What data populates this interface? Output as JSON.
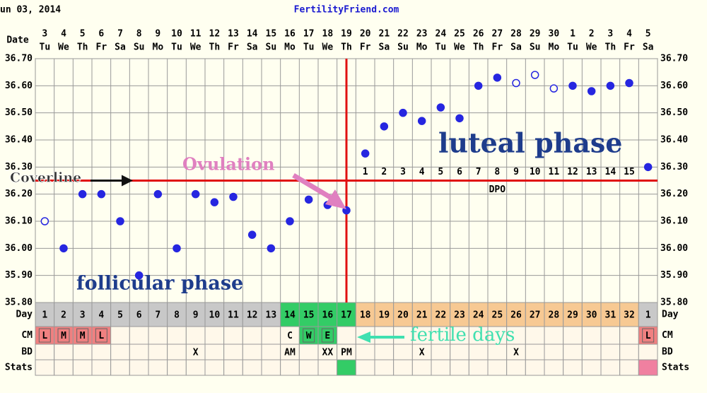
{
  "chart_data": {
    "type": "line",
    "header_date": "un 03, 2014",
    "site": "FertilityFriend.com",
    "date_label": "Date",
    "dates": [
      "3",
      "4",
      "5",
      "6",
      "7",
      "8",
      "9",
      "10",
      "11",
      "12",
      "13",
      "14",
      "15",
      "16",
      "17",
      "18",
      "19",
      "20",
      "21",
      "22",
      "23",
      "24",
      "25",
      "26",
      "27",
      "28",
      "29",
      "30",
      "1",
      "2",
      "3",
      "4",
      "5"
    ],
    "weekdays": [
      "Tu",
      "We",
      "Th",
      "Fr",
      "Sa",
      "Su",
      "Mo",
      "Tu",
      "We",
      "Th",
      "Fr",
      "Sa",
      "Su",
      "Mo",
      "Tu",
      "We",
      "Th",
      "Fr",
      "Sa",
      "Su",
      "Mo",
      "Tu",
      "We",
      "Th",
      "Fr",
      "Sa",
      "Su",
      "Mo",
      "Tu",
      "We",
      "Th",
      "Fr",
      "Sa"
    ],
    "values": [
      36.1,
      36.0,
      36.2,
      36.2,
      36.1,
      35.9,
      36.2,
      36.0,
      36.2,
      36.17,
      36.19,
      36.05,
      36.0,
      36.1,
      36.18,
      36.16,
      36.14,
      36.35,
      36.45,
      36.5,
      36.47,
      36.52,
      36.48,
      36.6,
      36.63,
      36.61,
      36.64,
      36.59,
      36.6,
      36.58,
      36.6,
      36.61,
      36.3
    ],
    "open_markers": [
      true,
      false,
      false,
      false,
      false,
      false,
      false,
      false,
      false,
      false,
      false,
      false,
      false,
      false,
      false,
      false,
      false,
      false,
      false,
      false,
      false,
      false,
      false,
      false,
      false,
      true,
      true,
      true,
      false,
      false,
      false,
      false,
      false
    ],
    "color": "#2626e0",
    "ylim": [
      35.8,
      36.7
    ],
    "yticks": [
      {
        "value": 35.8,
        "label": "35.80"
      },
      {
        "value": 35.9,
        "label": "35.90"
      },
      {
        "value": 36.0,
        "label": "36.00"
      },
      {
        "value": 36.1,
        "label": "36.10"
      },
      {
        "value": 36.2,
        "label": "36.20"
      },
      {
        "value": 36.3,
        "label": "36.30"
      },
      {
        "value": 36.4,
        "label": "36.40"
      },
      {
        "value": 36.5,
        "label": "36.50"
      },
      {
        "value": 36.6,
        "label": "36.60"
      },
      {
        "value": 36.7,
        "label": "36.70"
      }
    ],
    "grid": true,
    "coverline": {
      "value": 36.25,
      "label": "Coverline"
    },
    "ovulation": {
      "label": "Ovulation",
      "day": 17
    },
    "dpo": {
      "label": "DPO",
      "numbers": [
        1,
        2,
        3,
        4,
        5,
        6,
        7,
        8,
        9,
        10,
        11,
        12,
        13,
        14,
        15
      ]
    },
    "annotations": {
      "luteal": "luteal phase",
      "follicular": "follicular phase",
      "fertile": "fertile days"
    },
    "rows": {
      "day": {
        "label": "Day",
        "values": [
          1,
          2,
          3,
          4,
          5,
          6,
          7,
          8,
          9,
          10,
          11,
          12,
          13,
          14,
          15,
          16,
          17,
          18,
          19,
          20,
          21,
          22,
          23,
          24,
          25,
          26,
          27,
          28,
          29,
          30,
          31,
          32,
          1
        ],
        "colors": [
          "#c8c8c8",
          "#c8c8c8",
          "#c8c8c8",
          "#c8c8c8",
          "#c8c8c8",
          "#c8c8c8",
          "#c8c8c8",
          "#c8c8c8",
          "#c8c8c8",
          "#c8c8c8",
          "#c8c8c8",
          "#c8c8c8",
          "#c8c8c8",
          "#33cc66",
          "#33cc66",
          "#33cc66",
          "#33cc66",
          "#f7c993",
          "#f7c993",
          "#f7c993",
          "#f7c993",
          "#f7c993",
          "#f7c993",
          "#f7c993",
          "#f7c993",
          "#f7c993",
          "#f7c993",
          "#f7c993",
          "#f7c993",
          "#f7c993",
          "#f7c993",
          "#f7c993",
          "#c8c8c8"
        ]
      },
      "cm": {
        "label": "CM",
        "values": [
          "L",
          "M",
          "M",
          "L",
          null,
          null,
          null,
          null,
          null,
          null,
          null,
          null,
          null,
          "C",
          "W",
          "E",
          null,
          null,
          null,
          null,
          null,
          null,
          null,
          null,
          null,
          null,
          null,
          null,
          null,
          null,
          null,
          null,
          "L"
        ],
        "colors": [
          "#f08080",
          "#f08080",
          "#f08080",
          "#f08080",
          null,
          null,
          null,
          null,
          null,
          null,
          null,
          null,
          null,
          null,
          "#33cc66",
          "#33cc66",
          null,
          null,
          null,
          null,
          null,
          null,
          null,
          null,
          null,
          null,
          null,
          null,
          null,
          null,
          null,
          null,
          "#f08080"
        ]
      },
      "bd": {
        "label": "BD",
        "values": [
          null,
          null,
          null,
          null,
          null,
          null,
          null,
          null,
          "X",
          null,
          null,
          null,
          null,
          "AM",
          null,
          "XX",
          "PM",
          null,
          null,
          null,
          "X",
          null,
          null,
          null,
          null,
          "X",
          null,
          null,
          null,
          null,
          null,
          null,
          null
        ]
      },
      "stats": {
        "label": "Stats",
        "colors": [
          null,
          null,
          null,
          null,
          null,
          null,
          null,
          null,
          null,
          null,
          null,
          null,
          null,
          null,
          null,
          null,
          "#33cc66",
          null,
          null,
          null,
          null,
          null,
          null,
          null,
          null,
          null,
          null,
          null,
          null,
          null,
          null,
          null,
          "#f080a0"
        ]
      }
    }
  }
}
